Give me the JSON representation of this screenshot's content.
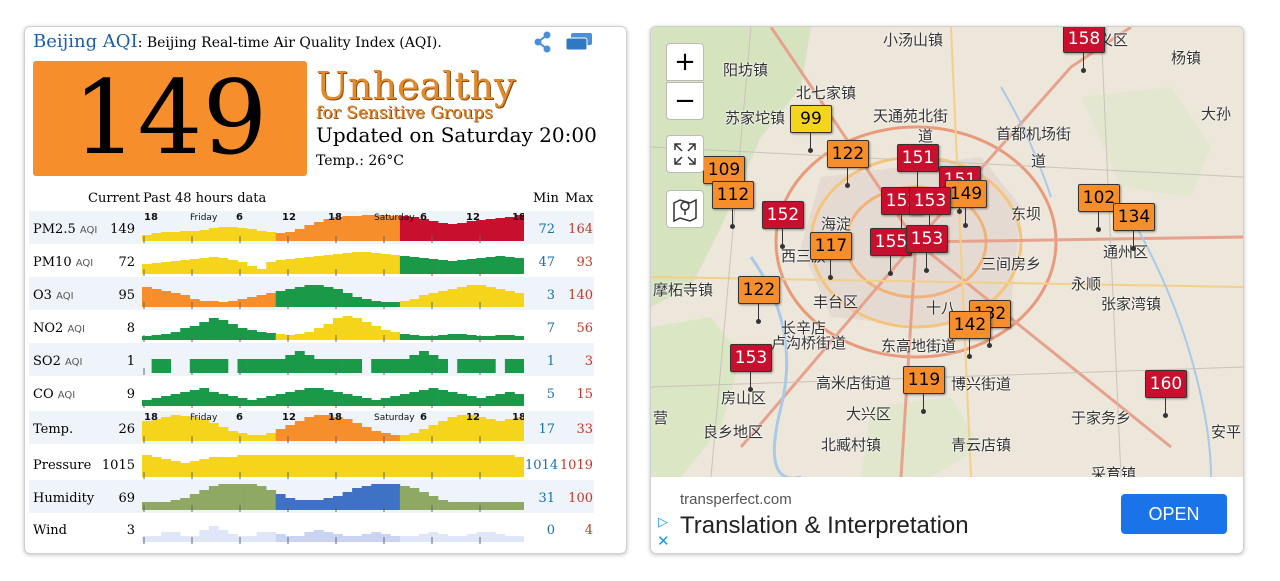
{
  "header": {
    "city": "Beijing AQI",
    "subtitle": ": Beijing Real-time Air Quality Index (AQI).",
    "share_icon": "share-icon",
    "layers_icon": "layers-icon"
  },
  "aqi": {
    "value": "149",
    "status_main": "Unhealthy",
    "status_sub": "for Sensitive Groups",
    "updated": "Updated on Saturday 20:00",
    "temp": "Temp.: 26°C",
    "color": "#f78e2c"
  },
  "table": {
    "col_current": "Current",
    "col_history": "Past 48 hours data",
    "col_min": "Min",
    "col_max": "Max",
    "axis_ticks": [
      "18",
      "Friday",
      "6",
      "12",
      "18",
      "Saturday",
      "6",
      "12",
      "18"
    ],
    "rows": [
      {
        "name": "PM2.5",
        "unit": "AQI",
        "current": "149",
        "min": "72",
        "max": "164"
      },
      {
        "name": "PM10",
        "unit": "AQI",
        "current": "72",
        "min": "47",
        "max": "93"
      },
      {
        "name": "O3",
        "unit": "AQI",
        "current": "95",
        "min": "3",
        "max": "140"
      },
      {
        "name": "NO2",
        "unit": "AQI",
        "current": "8",
        "min": "7",
        "max": "56"
      },
      {
        "name": "SO2",
        "unit": "AQI",
        "current": "1",
        "min": "1",
        "max": "3"
      },
      {
        "name": "CO",
        "unit": "AQI",
        "current": "9",
        "min": "5",
        "max": "15"
      },
      {
        "name": "Temp.",
        "unit": "",
        "current": "26",
        "min": "17",
        "max": "33"
      },
      {
        "name": "Pressure",
        "unit": "",
        "current": "1015",
        "min": "1014",
        "max": "1019"
      },
      {
        "name": "Humidity",
        "unit": "",
        "current": "69",
        "min": "31",
        "max": "100"
      },
      {
        "name": "Wind",
        "unit": "",
        "current": "3",
        "min": "0",
        "max": "4"
      }
    ]
  },
  "map": {
    "zoom_in": "+",
    "zoom_out": "−",
    "fullscreen_icon": "expand-icon",
    "map_style_icon": "map-pin-icon",
    "stations": [
      {
        "aqi": "158",
        "color": "#c8102e"
      },
      {
        "aqi": "99",
        "color": "#f5d41c"
      },
      {
        "aqi": "109",
        "color": "#f78e2c"
      },
      {
        "aqi": "122",
        "color": "#f78e2c"
      },
      {
        "aqi": "151",
        "color": "#c8102e"
      },
      {
        "aqi": "151",
        "color": "#c8102e"
      },
      {
        "aqi": "112",
        "color": "#f78e2c"
      },
      {
        "aqi": "149",
        "color": "#f78e2c"
      },
      {
        "aqi": "152",
        "color": "#c8102e"
      },
      {
        "aqi": "153",
        "color": "#c8102e"
      },
      {
        "aqi": "152",
        "color": "#c8102e"
      },
      {
        "aqi": "117",
        "color": "#f78e2c"
      },
      {
        "aqi": "155",
        "color": "#c8102e"
      },
      {
        "aqi": "153",
        "color": "#c8102e"
      },
      {
        "aqi": "102",
        "color": "#f78e2c"
      },
      {
        "aqi": "134",
        "color": "#f78e2c"
      },
      {
        "aqi": "122",
        "color": "#f78e2c"
      },
      {
        "aqi": "132",
        "color": "#f78e2c"
      },
      {
        "aqi": "142",
        "color": "#f78e2c"
      },
      {
        "aqi": "153",
        "color": "#c8102e"
      },
      {
        "aqi": "119",
        "color": "#f78e2c"
      },
      {
        "aqi": "160",
        "color": "#c8102e"
      }
    ],
    "labels": [
      "小汤山镇",
      "顺义区",
      "杨镇",
      "阳坊镇",
      "苏家坨镇",
      "天通苑北街",
      "首都机场街",
      "大孙",
      "北七家镇",
      "道",
      "道",
      "海淀",
      "东坝",
      "通州区",
      "西三旗",
      "三间房乡",
      "永顺",
      "丰台区",
      "十八",
      "张家湾镇",
      "摩柘寺镇",
      "卢沟桥街道",
      "东高地街道",
      "房山区",
      "高米店街道",
      "博兴街道",
      "于家务乡",
      "大兴区",
      "安平",
      "良乡地区",
      "北臧村镇",
      "青云店镇",
      "采育镇",
      "营",
      "长辛店"
    ]
  },
  "ad": {
    "domain": "transperfect.com",
    "title": "Translation & Interpretation",
    "button": "OPEN"
  }
}
